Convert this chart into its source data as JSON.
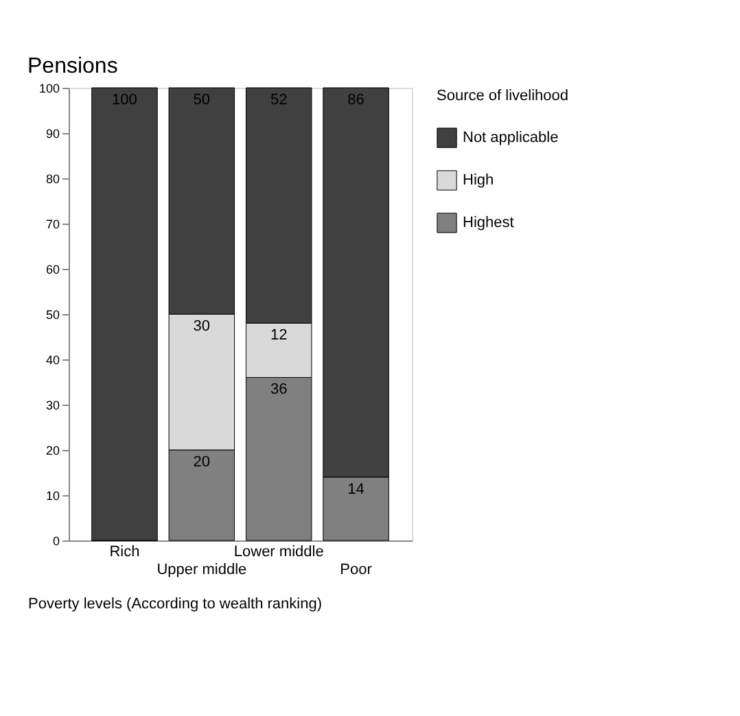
{
  "chart_data": {
    "type": "bar",
    "stacked": true,
    "title": "Pensions",
    "xlabel": "Poverty levels (According to wealth ranking)",
    "legend_title": "Source of livelihood",
    "legend": "right",
    "grid": false,
    "categories": [
      "Rich",
      "Upper middle",
      "Lower middle",
      "Poor"
    ],
    "ylim": [
      0,
      100
    ],
    "yticks": [
      0,
      10,
      20,
      30,
      40,
      50,
      60,
      70,
      80,
      90,
      100
    ],
    "series": [
      {
        "name": "Highest",
        "color": "#808080",
        "values": [
          0,
          20,
          36,
          14
        ],
        "value_labels": [
          null,
          "20",
          "36",
          "14"
        ]
      },
      {
        "name": "High",
        "color": "#d9d9d9",
        "values": [
          0,
          30,
          12,
          0
        ],
        "value_labels": [
          null,
          "30",
          "12",
          null
        ]
      },
      {
        "name": "Not applicable",
        "color": "#404040",
        "values": [
          100,
          50,
          52,
          86
        ],
        "value_labels": [
          "100",
          "50",
          "52",
          "86"
        ]
      }
    ]
  }
}
